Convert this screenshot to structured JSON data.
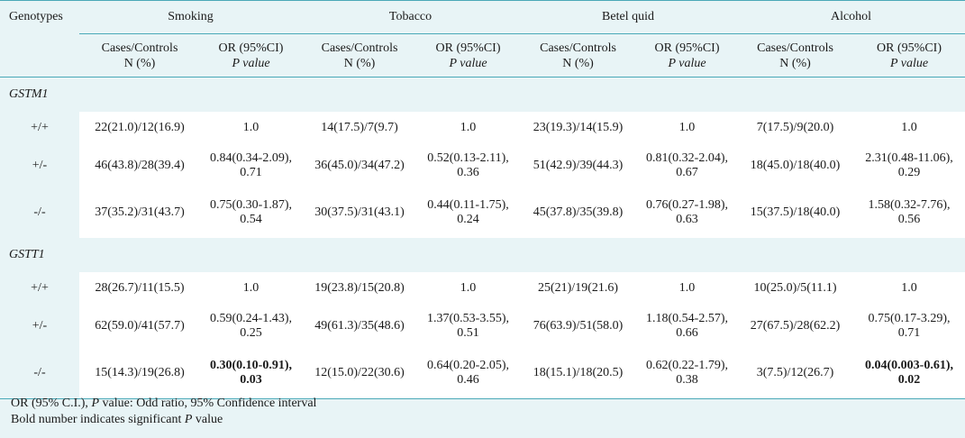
{
  "header": {
    "genotypes_label": "Genotypes",
    "groups": [
      "Smoking",
      "Tobacco",
      "Betel quid",
      "Alcohol"
    ],
    "sub": {
      "cases_line1": "Cases/Controls",
      "cases_line2": "N (%)",
      "or_line1": "OR (95%CI)",
      "or_line2": "P value"
    }
  },
  "sections": [
    {
      "name": "GSTM1",
      "rows": [
        {
          "genotype": "+/+",
          "cells": [
            {
              "cc": "22(21.0)/12(16.9)",
              "or1": "1.0",
              "or2": ""
            },
            {
              "cc": "14(17.5)/7(9.7)",
              "or1": "1.0",
              "or2": ""
            },
            {
              "cc": "23(19.3)/14(15.9)",
              "or1": "1.0",
              "or2": ""
            },
            {
              "cc": "7(17.5)/9(20.0)",
              "or1": "1.0",
              "or2": ""
            }
          ]
        },
        {
          "genotype": "+/-",
          "cells": [
            {
              "cc": "46(43.8)/28(39.4)",
              "or1": "0.84(0.34-2.09),",
              "or2": "0.71"
            },
            {
              "cc": "36(45.0)/34(47.2)",
              "or1": "0.52(0.13-2.11),",
              "or2": "0.36"
            },
            {
              "cc": "51(42.9)/39(44.3)",
              "or1": "0.81(0.32-2.04),",
              "or2": "0.67"
            },
            {
              "cc": "18(45.0)/18(40.0)",
              "or1": "2.31(0.48-11.06),",
              "or2": "0.29"
            }
          ]
        },
        {
          "genotype": "-/-",
          "cells": [
            {
              "cc": "37(35.2)/31(43.7)",
              "or1": "0.75(0.30-1.87),",
              "or2": "0.54"
            },
            {
              "cc": "30(37.5)/31(43.1)",
              "or1": "0.44(0.11-1.75),",
              "or2": "0.24"
            },
            {
              "cc": "45(37.8)/35(39.8)",
              "or1": "0.76(0.27-1.98),",
              "or2": "0.63"
            },
            {
              "cc": "15(37.5)/18(40.0)",
              "or1": "1.58(0.32-7.76),",
              "or2": "0.56"
            }
          ]
        }
      ]
    },
    {
      "name": "GSTT1",
      "rows": [
        {
          "genotype": "+/+",
          "cells": [
            {
              "cc": "28(26.7)/11(15.5)",
              "or1": "1.0",
              "or2": ""
            },
            {
              "cc": "19(23.8)/15(20.8)",
              "or1": "1.0",
              "or2": ""
            },
            {
              "cc": "25(21)/19(21.6)",
              "or1": "1.0",
              "or2": ""
            },
            {
              "cc": "10(25.0)/5(11.1)",
              "or1": "1.0",
              "or2": ""
            }
          ]
        },
        {
          "genotype": "+/-",
          "cells": [
            {
              "cc": "62(59.0)/41(57.7)",
              "or1": "0.59(0.24-1.43),",
              "or2": "0.25"
            },
            {
              "cc": "49(61.3)/35(48.6)",
              "or1": "1.37(0.53-3.55),",
              "or2": "0.51"
            },
            {
              "cc": "76(63.9)/51(58.0)",
              "or1": "1.18(0.54-2.57),",
              "or2": "0.66"
            },
            {
              "cc": "27(67.5)/28(62.2)",
              "or1": "0.75(0.17-3.29),",
              "or2": "0.71"
            }
          ]
        },
        {
          "genotype": "-/-",
          "cells": [
            {
              "cc": "15(14.3)/19(26.8)",
              "or1": "0.30(0.10-0.91),",
              "or2": "0.03",
              "bold": true
            },
            {
              "cc": "12(15.0)/22(30.6)",
              "or1": "0.64(0.20-2.05),",
              "or2": "0.46"
            },
            {
              "cc": "18(15.1)/18(20.5)",
              "or1": "0.62(0.22-1.79),",
              "or2": "0.38"
            },
            {
              "cc": "3(7.5)/12(26.7)",
              "or1": "0.04(0.003-0.61),",
              "or2": "0.02",
              "bold": true
            }
          ]
        }
      ]
    }
  ],
  "footnotes": {
    "line1_a": "OR (95% C.I.), ",
    "line1_p": "P",
    "line1_b": " value: Odd ratio, 95% Confidence interval",
    "line2": "Bold number indicates significant P value"
  }
}
